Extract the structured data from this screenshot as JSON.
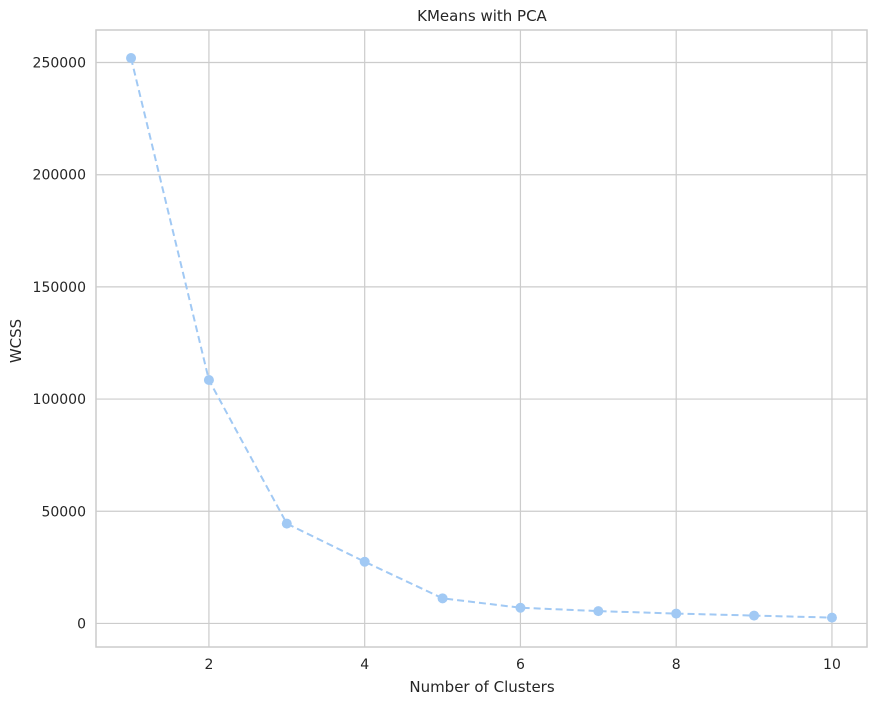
{
  "chart_data": {
    "type": "line",
    "title": "KMeans with PCA",
    "xlabel": "Number of Clusters",
    "ylabel": "WCSS",
    "x": [
      1,
      2,
      3,
      4,
      5,
      6,
      7,
      8,
      9,
      10
    ],
    "series": [
      {
        "values": [
          252000,
          108500,
          44500,
          27500,
          11200,
          7000,
          5500,
          4400,
          3500,
          2600
        ],
        "color": "#a1c9f4",
        "line_style": "dashed",
        "marker": "circle"
      }
    ],
    "xlim": [
      0.55,
      10.45
    ],
    "ylim": [
      -10500,
      264500
    ],
    "xticks": [
      2,
      4,
      6,
      8,
      10
    ],
    "yticks": [
      0,
      50000,
      100000,
      150000,
      200000,
      250000
    ],
    "grid": true,
    "background": "#ffffff",
    "grid_color": "#cccccc"
  }
}
